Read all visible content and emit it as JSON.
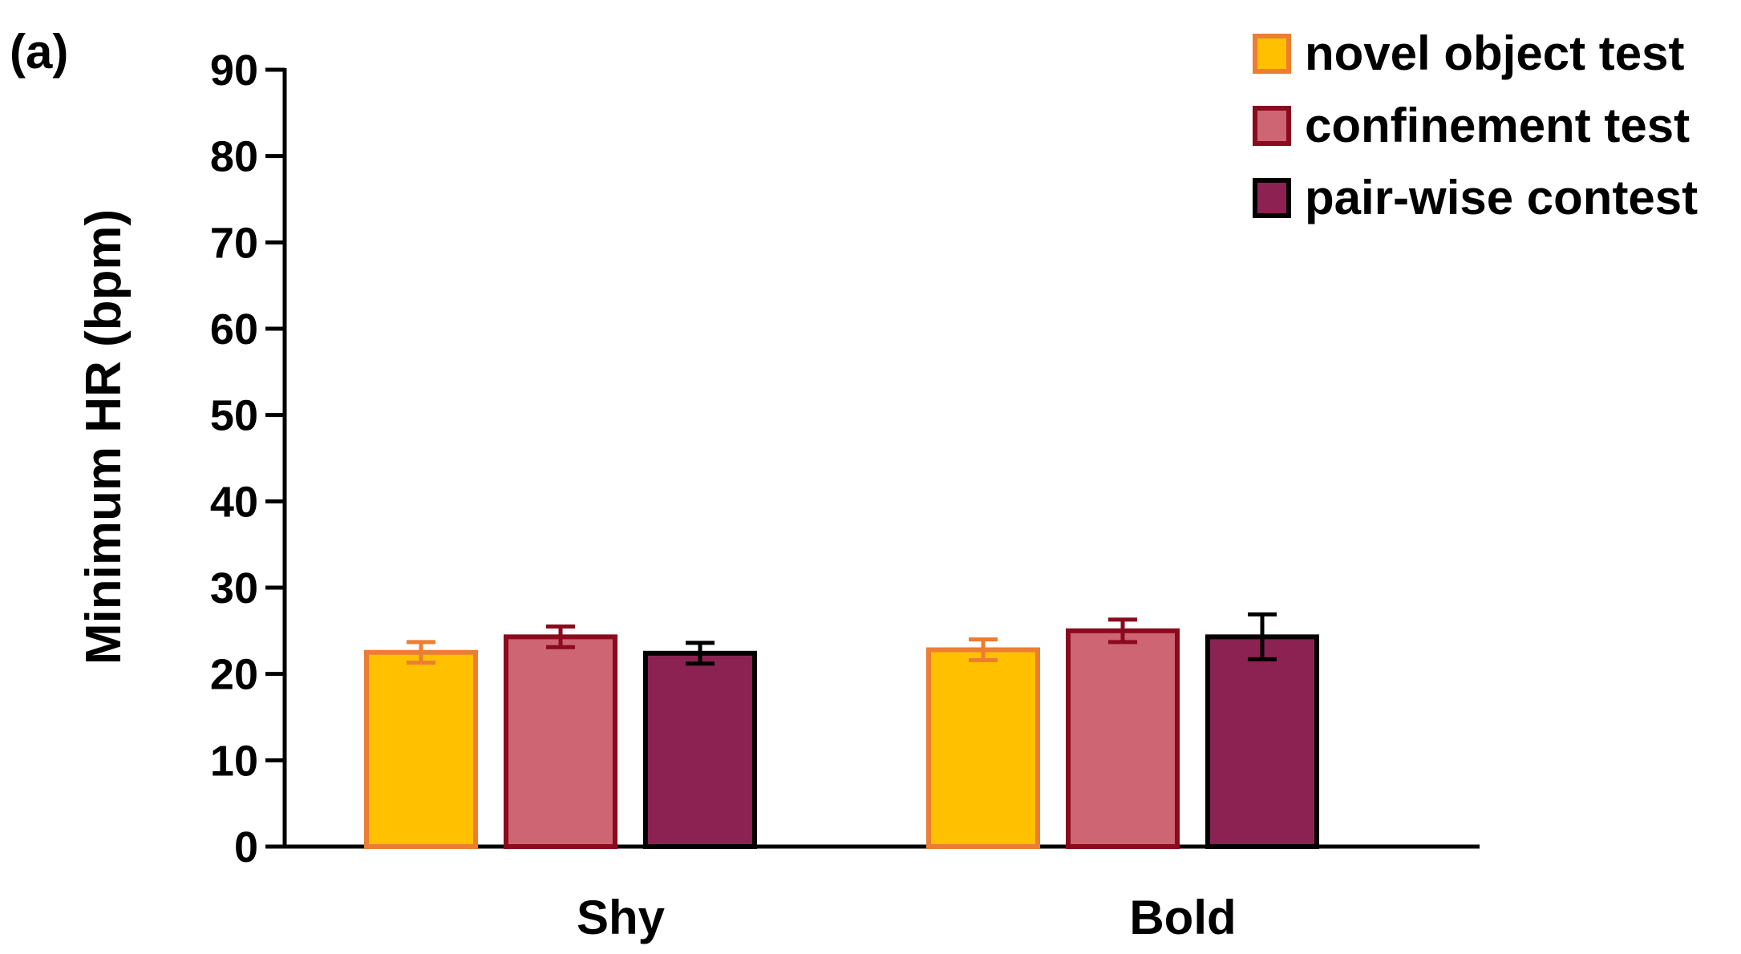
{
  "panel_label": "(a)",
  "chart_data": {
    "type": "bar",
    "title": "",
    "xlabel": "",
    "ylabel": "Minimum HR (bpm)",
    "ylim": [
      0,
      90
    ],
    "yticks": [
      0,
      10,
      20,
      30,
      40,
      50,
      60,
      70,
      80,
      90
    ],
    "grid": false,
    "legend_position": "top-right",
    "categories": [
      "Shy",
      "Bold"
    ],
    "series": [
      {
        "name": "novel object test",
        "fill": "#FFC000",
        "edge": "#ED7D31",
        "values": [
          22.5,
          22.8
        ],
        "errors": [
          1.2,
          1.2
        ]
      },
      {
        "name": "confinement test",
        "fill": "#CD6572",
        "edge": "#8B0A1E",
        "values": [
          24.3,
          25.0
        ],
        "errors": [
          1.2,
          1.3
        ]
      },
      {
        "name": "pair-wise contest",
        "fill": "#8B2252",
        "edge": "#000000",
        "values": [
          22.4,
          24.3
        ],
        "errors": [
          1.2,
          2.6
        ]
      }
    ]
  }
}
